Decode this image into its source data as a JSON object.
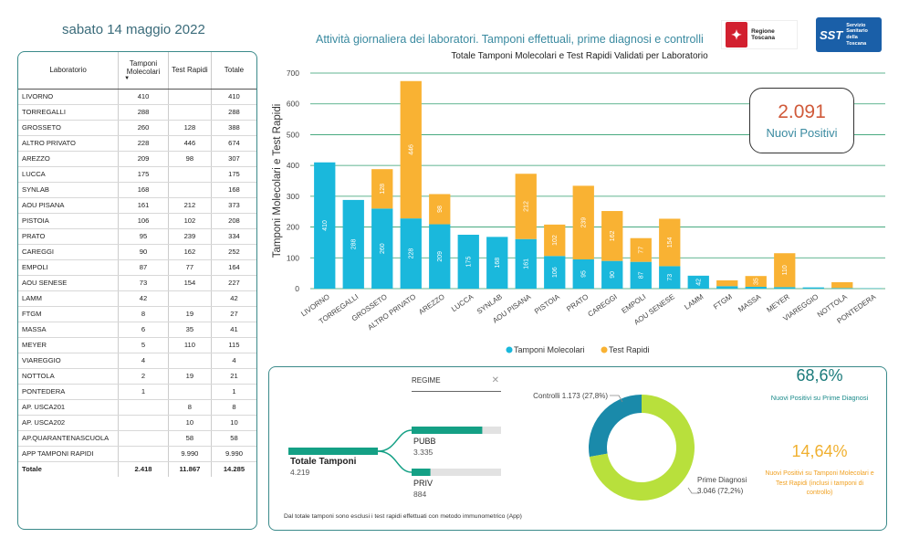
{
  "header": {
    "date": "sabato 14 maggio 2022",
    "title": "Attività giornaliera dei laboratori. Tamponi effettuali, prime diagnosi e controlli",
    "logo_regione": "Regione Toscana",
    "logo_sst_abbr": "SST",
    "logo_sst_text": "Servizio Sanitario della Toscana"
  },
  "table": {
    "headers": [
      "Laboratorio",
      "Tamponi Molecolari",
      "Test Rapidi",
      "Totale"
    ],
    "rows": [
      [
        "LIVORNO",
        "410",
        "",
        "410"
      ],
      [
        "TORREGALLI",
        "288",
        "",
        "288"
      ],
      [
        "GROSSETO",
        "260",
        "128",
        "388"
      ],
      [
        "ALTRO PRIVATO",
        "228",
        "446",
        "674"
      ],
      [
        "AREZZO",
        "209",
        "98",
        "307"
      ],
      [
        "LUCCA",
        "175",
        "",
        "175"
      ],
      [
        "SYNLAB",
        "168",
        "",
        "168"
      ],
      [
        "AOU PISANA",
        "161",
        "212",
        "373"
      ],
      [
        "PISTOIA",
        "106",
        "102",
        "208"
      ],
      [
        "PRATO",
        "95",
        "239",
        "334"
      ],
      [
        "CAREGGI",
        "90",
        "162",
        "252"
      ],
      [
        "EMPOLI",
        "87",
        "77",
        "164"
      ],
      [
        "AOU SENESE",
        "73",
        "154",
        "227"
      ],
      [
        "LAMM",
        "42",
        "",
        "42"
      ],
      [
        "FTGM",
        "8",
        "19",
        "27"
      ],
      [
        "MASSA",
        "6",
        "35",
        "41"
      ],
      [
        "MEYER",
        "5",
        "110",
        "115"
      ],
      [
        "VIAREGGIO",
        "4",
        "",
        "4"
      ],
      [
        "NOTTOLA",
        "2",
        "19",
        "21"
      ],
      [
        "PONTEDERA",
        "1",
        "",
        "1"
      ],
      [
        "AP. USCA201",
        "",
        "8",
        "8"
      ],
      [
        "AP. USCA202",
        "",
        "10",
        "10"
      ],
      [
        "AP.QUARANTENASCUOLA",
        "",
        "58",
        "58"
      ],
      [
        "APP TAMPONI RAPIDI",
        "",
        "9.990",
        "9.990"
      ]
    ],
    "total": [
      "Totale",
      "2.418",
      "11.867",
      "14.285"
    ]
  },
  "kpi": {
    "value": "2.091",
    "label": "Nuovi Positivi"
  },
  "chart_data": {
    "type": "bar",
    "stacked": true,
    "title": "Totale Tamponi Molecolari e Test Rapidi Validati per Laboratorio",
    "ylabel": "Tamponi Molecolari e Test Rapidi",
    "xlabel": "",
    "ylim": [
      0,
      700
    ],
    "yticks": [
      0,
      100,
      200,
      300,
      400,
      500,
      600,
      700
    ],
    "grid": true,
    "legend_position": "bottom",
    "categories": [
      "LIVORNO",
      "TORREGALLI",
      "GROSSETO",
      "ALTRO PRIVATO",
      "AREZZO",
      "LUCCA",
      "SYNLAB",
      "AOU PISANA",
      "PISTOIA",
      "PRATO",
      "CAREGGI",
      "EMPOLI",
      "AOU SENESE",
      "LAMM",
      "FTGM",
      "MASSA",
      "MEYER",
      "VIAREGGIO",
      "NOTTOLA",
      "PONTEDERA"
    ],
    "series": [
      {
        "name": "Tamponi Molecolari",
        "color": "#1ab8dc",
        "values": [
          410,
          288,
          260,
          228,
          209,
          175,
          168,
          161,
          106,
          95,
          90,
          87,
          73,
          42,
          8,
          6,
          5,
          4,
          2,
          1
        ]
      },
      {
        "name": "Test Rapidi",
        "color": "#f9b233",
        "values": [
          0,
          0,
          128,
          446,
          98,
          0,
          0,
          212,
          102,
          239,
          162,
          77,
          154,
          0,
          19,
          35,
          110,
          0,
          19,
          0
        ]
      }
    ]
  },
  "decomp": {
    "filter_label": "REGIME",
    "root_label": "Totale Tamponi",
    "root_value": "4.219",
    "branches": [
      {
        "label": "PUBB",
        "value": "3.335",
        "fraction": 0.79
      },
      {
        "label": "PRIV",
        "value": "884",
        "fraction": 0.21
      }
    ]
  },
  "donut": {
    "slices": [
      {
        "label": "Controlli",
        "value_text": "1.173 (27,8%)",
        "value": 1173,
        "color": "#1a8aaa"
      },
      {
        "label": "Prime Diagnosi",
        "value_text": "3.046 (72,2%)",
        "value": 3046,
        "color": "#b8e03c"
      }
    ]
  },
  "stats": {
    "pct1_value": "68,6%",
    "pct1_label": "Nuovi Positivi su Prime Diagnosi",
    "pct2_value": "14,64%",
    "pct2_label": "Nuovi Positivi su Tamponi Molecolari e Test Rapidi (inclusi i tamponi di controllo)"
  },
  "footnote": "Dal totale tamponi sono esclusi i test rapidi effettuati con metodo immunometrico (App)"
}
